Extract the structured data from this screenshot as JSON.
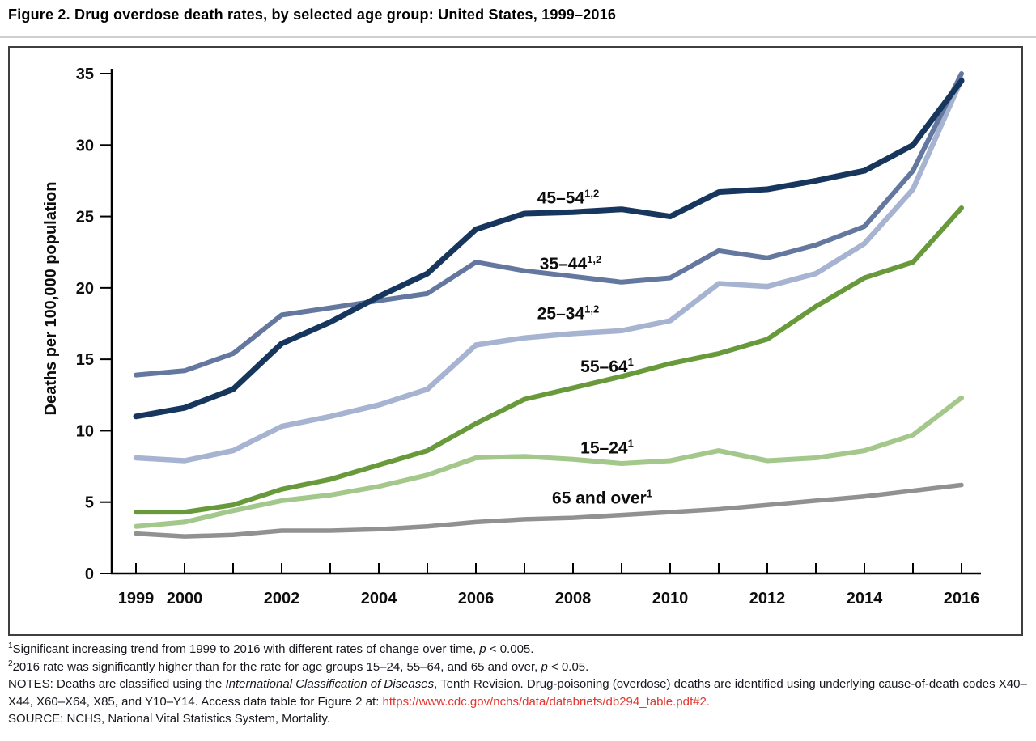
{
  "chart_data": {
    "type": "line",
    "title": "Figure 2. Drug overdose death rates, by selected age group: United States, 1999–2016",
    "ylabel": "Deaths per 100,000 population",
    "xlabel": "",
    "ylim": [
      0,
      35
    ],
    "yticks": [
      0,
      5,
      10,
      15,
      20,
      25,
      30,
      35
    ],
    "x": [
      1999,
      2000,
      2001,
      2002,
      2003,
      2004,
      2005,
      2006,
      2007,
      2008,
      2009,
      2010,
      2011,
      2012,
      2013,
      2014,
      2015,
      2016
    ],
    "xtick_label_years": [
      1999,
      2000,
      2002,
      2004,
      2006,
      2008,
      2010,
      2012,
      2014,
      2016
    ],
    "grid": false,
    "legend_position": "inline-labels",
    "series": [
      {
        "name": "45–54",
        "superscript": "1,2",
        "color": "#17365d",
        "stroke_width": 7,
        "values": [
          11.0,
          11.6,
          12.9,
          16.1,
          17.6,
          19.4,
          21.0,
          24.1,
          25.2,
          25.3,
          25.5,
          25.0,
          26.7,
          26.9,
          27.5,
          28.2,
          30.0,
          34.5
        ],
        "label_anchor": {
          "year": 2007.9,
          "value": 25.9
        }
      },
      {
        "name": "35–44",
        "superscript": "1,2",
        "color": "#64789f",
        "stroke_width": 6,
        "values": [
          13.9,
          14.2,
          15.4,
          18.1,
          18.6,
          19.1,
          19.6,
          21.8,
          21.2,
          20.8,
          20.4,
          20.7,
          22.6,
          22.1,
          23.0,
          24.3,
          28.2,
          35.0
        ],
        "label_anchor": {
          "year": 2007.95,
          "value": 21.3
        }
      },
      {
        "name": "25–34",
        "superscript": "1,2",
        "color": "#a6b3d1",
        "stroke_width": 6.5,
        "values": [
          8.1,
          7.9,
          8.6,
          10.3,
          11.0,
          11.8,
          12.9,
          16.0,
          16.5,
          16.8,
          17.0,
          17.7,
          20.3,
          20.1,
          21.0,
          23.1,
          26.9,
          34.6
        ],
        "label_anchor": {
          "year": 2007.9,
          "value": 17.8
        }
      },
      {
        "name": "55–64",
        "superscript": "1",
        "color": "#68993b",
        "stroke_width": 6,
        "values": [
          4.3,
          4.3,
          4.8,
          5.9,
          6.6,
          7.6,
          8.6,
          10.5,
          12.2,
          13.0,
          13.8,
          14.7,
          15.4,
          16.4,
          18.7,
          20.7,
          21.8,
          25.6
        ],
        "label_anchor": {
          "year": 2008.7,
          "value": 14.1
        }
      },
      {
        "name": "15–24",
        "superscript": "1",
        "color": "#a4c88b",
        "stroke_width": 6,
        "values": [
          3.3,
          3.6,
          4.4,
          5.1,
          5.5,
          6.1,
          6.9,
          8.1,
          8.2,
          8.0,
          7.7,
          7.9,
          8.6,
          7.9,
          8.1,
          8.6,
          9.7,
          12.3
        ],
        "label_anchor": {
          "year": 2008.7,
          "value": 8.4
        }
      },
      {
        "name": "65 and over",
        "superscript": "1",
        "color": "#919191",
        "stroke_width": 5.5,
        "values": [
          2.8,
          2.6,
          2.7,
          3.0,
          3.0,
          3.1,
          3.3,
          3.6,
          3.8,
          3.9,
          4.1,
          4.3,
          4.5,
          4.8,
          5.1,
          5.4,
          5.8,
          6.2
        ],
        "label_anchor": {
          "year": 2008.6,
          "value": 4.9
        }
      }
    ]
  },
  "footnotes": [
    {
      "id": "footnote-1",
      "segments": [
        {
          "style": "sup",
          "t": "1"
        },
        {
          "style": "plain",
          "t": "Significant increasing trend from 1999 to 2016 with different rates of change over time, "
        },
        {
          "style": "italic",
          "t": "p"
        },
        {
          "style": "plain",
          "t": " < 0.005."
        }
      ]
    },
    {
      "id": "footnote-2",
      "segments": [
        {
          "style": "sup",
          "t": "2"
        },
        {
          "style": "plain",
          "t": "2016 rate was significantly higher than for the rate for age groups 15–24, 55–64, and 65 and over, "
        },
        {
          "style": "italic",
          "t": "p"
        },
        {
          "style": "plain",
          "t": " < 0.05."
        }
      ]
    },
    {
      "id": "footnote-notes",
      "segments": [
        {
          "style": "plain",
          "t": "NOTES: Deaths are classified using the "
        },
        {
          "style": "italic",
          "t": "International Classification of Diseases"
        },
        {
          "style": "plain",
          "t": ", Tenth Revision. Drug-poisoning (overdose) deaths are identified using underlying cause-of-death codes X40–X44, X60–X64, X85, and Y10–Y14. Access data table for Figure 2 at: "
        },
        {
          "style": "link",
          "t": "https://www.cdc.gov/nchs/data/databriefs/db294_table.pdf#2."
        }
      ]
    },
    {
      "id": "footnote-source",
      "segments": [
        {
          "style": "plain",
          "t": "SOURCE: NCHS, National Vital Statistics System, Mortality."
        }
      ]
    }
  ],
  "colors": {
    "axis": "#000000",
    "tick_label": "#0d0d0d",
    "series_label": "#0d0d0d",
    "footnote_text": "#17171e",
    "link_red": "#e5342b",
    "chart_border": "#3f3f3f",
    "title_rule": "#cfcfcf"
  }
}
